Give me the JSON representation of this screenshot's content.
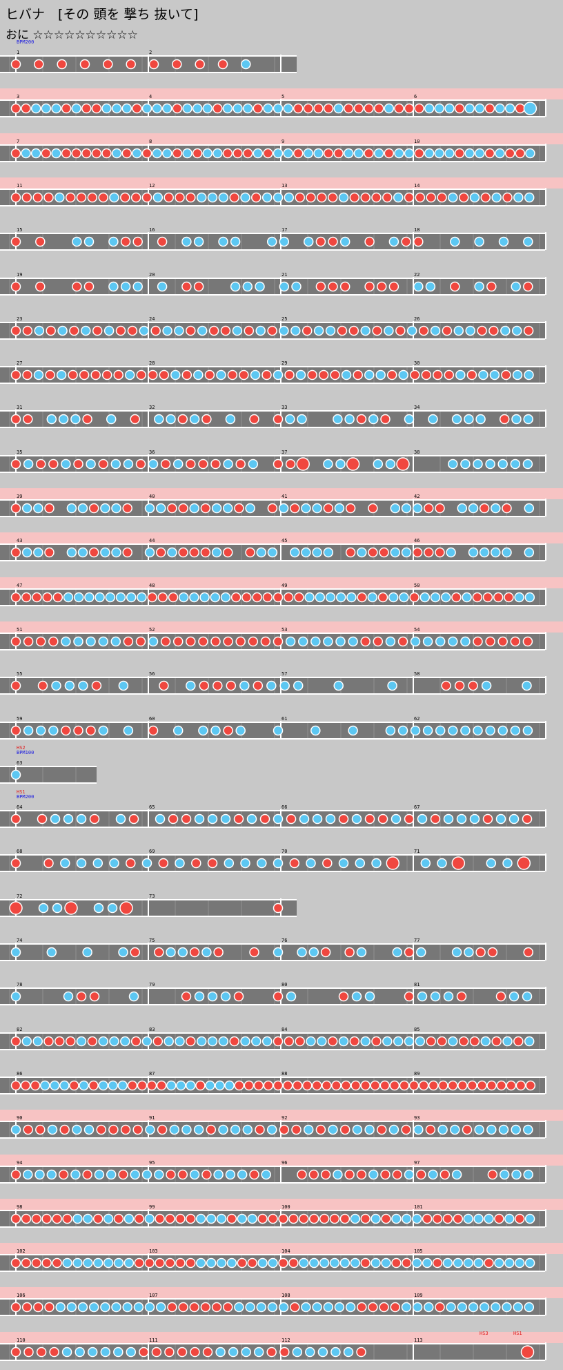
{
  "song": {
    "title": "ヒバナ　[その 頭を 撃ち 抜いて]",
    "difficulty_label": "おに",
    "stars": "☆☆☆☆☆☆☆☆☆☆"
  },
  "colors": {
    "background": "#c8c8c8",
    "gogo_band": "#f7c3c3",
    "lane": "#777777",
    "lane_alt": "#8a8a8a",
    "lane_border": "#ffffff",
    "don": "#f0473f",
    "ka": "#5cc7f2",
    "note_border": "#ffffff",
    "bpm_text": "#1a1ae0",
    "scroll_text": "#e02020"
  },
  "rows": [
    {
      "gogo": false,
      "measures": [
        "1",
        "2"
      ],
      "events": [
        "BPM200"
      ],
      "short": "m2"
    },
    {
      "gogo": true,
      "measures": [
        "3",
        "4",
        "5",
        "6"
      ]
    },
    {
      "gogo": true,
      "measures": [
        "7",
        "8",
        "9",
        "10"
      ]
    },
    {
      "gogo": true,
      "measures": [
        "11",
        "12",
        "13",
        "14"
      ]
    },
    {
      "gogo": false,
      "measures": [
        "15",
        "16",
        "17",
        "18"
      ]
    },
    {
      "gogo": false,
      "measures": [
        "19",
        "20",
        "21",
        "22"
      ]
    },
    {
      "gogo": false,
      "measures": [
        "23",
        "24",
        "25",
        "26"
      ]
    },
    {
      "gogo": false,
      "measures": [
        "27",
        "28",
        "29",
        "30"
      ]
    },
    {
      "gogo": false,
      "measures": [
        "31",
        "32",
        "33",
        "34"
      ]
    },
    {
      "gogo": false,
      "measures": [
        "35",
        "36",
        "37",
        "38"
      ]
    },
    {
      "gogo": true,
      "measures": [
        "39",
        "40",
        "41",
        "42"
      ]
    },
    {
      "gogo": true,
      "measures": [
        "43",
        "44",
        "45",
        "46"
      ]
    },
    {
      "gogo": true,
      "measures": [
        "47",
        "48",
        "49",
        "50"
      ]
    },
    {
      "gogo": true,
      "measures": [
        "51",
        "52",
        "53",
        "54"
      ]
    },
    {
      "gogo": false,
      "measures": [
        "55",
        "56",
        "57",
        "58"
      ]
    },
    {
      "gogo": false,
      "measures": [
        "59",
        "60",
        "61",
        "62"
      ]
    },
    {
      "gogo": false,
      "measures": [
        "63"
      ],
      "events": [
        "HS2",
        "BPM100"
      ],
      "short": "m63"
    },
    {
      "gogo": false,
      "measures": [
        "64",
        "65",
        "66",
        "67"
      ],
      "events": [
        "HS1",
        "BPM200"
      ]
    },
    {
      "gogo": false,
      "measures": [
        "68",
        "69",
        "70",
        "71"
      ]
    },
    {
      "gogo": false,
      "measures": [
        "72",
        "73"
      ],
      "short": "m2"
    },
    {
      "gogo": false,
      "measures": [
        "74",
        "75",
        "76",
        "77"
      ]
    },
    {
      "gogo": false,
      "measures": [
        "78",
        "79",
        "80",
        "81"
      ]
    },
    {
      "gogo": false,
      "measures": [
        "82",
        "83",
        "84",
        "85"
      ]
    },
    {
      "gogo": false,
      "measures": [
        "86",
        "87",
        "88",
        "89"
      ]
    },
    {
      "gogo": true,
      "measures": [
        "90",
        "91",
        "92",
        "93"
      ]
    },
    {
      "gogo": true,
      "measures": [
        "94",
        "95",
        "96",
        "97"
      ]
    },
    {
      "gogo": true,
      "measures": [
        "98",
        "99",
        "100",
        "101"
      ]
    },
    {
      "gogo": true,
      "measures": [
        "102",
        "103",
        "104",
        "105"
      ]
    },
    {
      "gogo": true,
      "measures": [
        "106",
        "107",
        "108",
        "109"
      ]
    },
    {
      "gogo": true,
      "measures": [
        "110",
        "111",
        "112",
        "113"
      ],
      "events": [
        "HS3",
        "HS1"
      ]
    }
  ],
  "notes": [
    "d.d.d.d.d.d.d.d.d.d.k...",
    "ddkkkdkddkkkdkkkdkkkdkkkdkkkddddkddddkdddkkkdkkdkkdK",
    "dkkdkdddddkdkdkkdkdkkdddkdkkdkkddkkdkdkkdkkkdkkdkddk",
    "ddddkddddkdddkdddkkkdkdkkkddddkddddkddddkdkdkdkk",
    "d.d..kk.kdd.d.kk.kk..kk.kddk.d.kdd..k.k.k.k",
    "d.d..dd.kkk.k.dd..kkk.kk.ddd.ddd.kk.d.kd.kd",
    "ddkdkdkdkddkdkkdkddkdkdkkdkkddkdkdkdkdkkddkkd",
    "ddkdkdddddkdddkdkdkddkdkdkdddkdkkdkddddkdkkdkk",
    "dd.kkkd.k.d.kkdkd.k.d.dkk..kkdkd.k.k.kkk.dkk",
    "dkddkdkdkkdkdkdddkdk.ddD.kkD.kkD...kkkkkkk",
    "dkkd.kkdkkd.kkddkdkkdk.dkdkkdkd.d.kkkdd.kkdkd.k",
    "dkkd.kkdkkd.kdkdddkd.dkk.kkkk.dkddkkdddk.kkkk.k",
    "dddddkkkkkkkkdddkkkkkdddddddkkkkkdkdkkdkkkdkddddkk",
    "ddddkkkkkddkddddddddddkkkkkkddkdkkkkkddddd",
    "d.dkkkd.k..d.kdddkdkkk..k...k...dddk..k",
    "dkkkdddk.k.d.k.kkdk..k..k..k..kkkkkkkkkkkk",
    "k",
    "d.dkkkd.kd.kddkkkdkdkdkkkdkddkdkdkkkdkkd",
    "d.dkkkkdkdkddkkkkdkdkkkD.kkD.kkD",
    "D.kkD.kkD..........d",
    "k..k..k..kd.dkkdkd..d.k.kkd.dk..kdk..kkdd..d",
    "k...kdd..k...dkkkd..dk...dkk..dkkkd..dkk",
    "dkkdddkdkkkdkdkkdkkkdkkkdddkkdkdkdkkkkddkddkdkdk",
    "dddkkkdkdkkkddddkkkdkkkddddddddddddddddddddddddddddddd",
    "kddkdkkddddkdkkkdkkkdkddkdkdkkdkdkdkkdkkkkk",
    "dkkkdkdkkdkkkddkdkkkdk..dddkddkddkdkdk..dkkk",
    "ddddddkkdkdkdkddddkkkdkkdddddddddkdkdkkkddddkkkdkdk",
    "dddddkkkkkkkddddddkkkkddkkddkkkkkkdkkddkkdkkkkdkkkk",
    "ddddkkkkkkkkkkddddddkkkkkdkkkkkddddkkkdkkkkkkkk",
    "ddddkkkkkkddddddkkkkddkkkkkd............D"
  ]
}
